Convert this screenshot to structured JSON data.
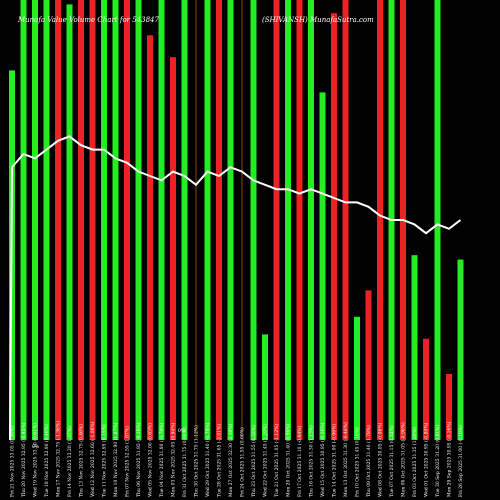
{
  "chart_data": {
    "type": "bar",
    "title_left": "Munafa Value Volume Chart for 543847",
    "title_right": "(SHIVANSH) MunafaSutra.com",
    "extra_labels": [
      "0%",
      "0%"
    ],
    "colors": {
      "up": "#22ee22",
      "down": "#ee2222",
      "line": "#ffffff",
      "neutral": "#8b4513",
      "background": "#000000"
    },
    "ylim": [
      0,
      100
    ],
    "categories": [
      "Fri 21 Nov 2025 33.05 (0.30%)",
      "Thu 20 Nov 2025 32.95 (-0.45%)",
      "Wed 19 Nov 2025 33.10 (0.61%)",
      "Tue 18 Nov 2025 32.90 (0.46%)",
      "Mon 17 Nov 2025 32.75 (-1.36%)",
      "Fri 14 Nov 2025 33.20 (1.37%)",
      "Thu 13 Nov 2025 32.75 (0.46%)",
      "Wed 12 Nov 2025 32.60 (-1.06%)",
      "Tue 11 Nov 2025 32.95 (0.15%)",
      "Mon 10 Nov 2025 32.90 (1.07%)",
      "Fri 07 Nov 2025 32.55 (1.87%)",
      "Thu 06 Nov 2025 31.95 (-0.16%)",
      "Wed 05 Nov 2025 32.00 (0.63%)",
      "Tue 04 Nov 2025 31.80 (-0.78%)",
      "Mon 03 Nov 2025 32.05 (0.94%)",
      "Fri 31 Oct 2025 31.75 (0.00%)",
      "Thu 30 Oct 2025 31.75 (1.12%)",
      "Wed 29 Oct 2025 31.40 (-0.79%)",
      "Tue 28 Oct 2025 31.65 (-2.01%)",
      "Mon 27 Oct 2025 32.30 (2.38%)",
      "Fri 24 Oct 2025 31.55 (0.00%)",
      "Thu 23 Oct 2025 31.55 (0.32%)",
      "Wed 22 Oct 2025 31.45 (1.29%)",
      "Tue 21 Oct 2025 31.05 (-1.12%)",
      "Mon 20 Oct 2025 31.40 (0.96%)",
      "Fri 17 Oct 2025 31.10 (-0.64%)",
      "Thu 16 Oct 2025 31.30 (1.13%)",
      "Wed 15 Oct 2025 30.95 (-0.16%)",
      "Tue 14 Oct 2025 31.00 (-0.96%)",
      "Mon 13 Oct 2025 31.30 (-0.48%)",
      "Fri 10 Oct 2025 31.45 (0.16%)",
      "Thu 09 Oct 2025 31.40 (1.78%)",
      "Wed 08 Oct 2025 30.85 (-0.96%)",
      "Tue 07 Oct 2025 31.15 (0.32%)",
      "Mon 06 Oct 2025 31.05 (-0.96%)",
      "Fri 03 Oct 2025 31.35 (1.29%)",
      "Wed 01 Oct 2025 30.95 (-0.80%)",
      "Tue 30 Sep 2025 31.20 (0.81%)",
      "Mon 29 Sep 2025 30.95 (-0.16%)",
      "Fri 26 Sep 2025 31.00 (-0.16%)"
    ],
    "values": [
      84,
      100,
      100,
      100,
      100,
      99,
      100,
      100,
      100,
      100,
      100,
      100,
      92,
      100,
      87,
      100,
      100,
      100,
      100,
      100,
      100,
      100,
      24,
      100,
      100,
      100,
      100,
      79,
      97,
      100,
      28,
      34,
      100,
      100,
      100,
      42,
      23,
      100,
      15,
      41
    ],
    "direction": [
      "up",
      "up",
      "up",
      "up",
      "down",
      "up",
      "down",
      "down",
      "up",
      "up",
      "down",
      "up",
      "down",
      "up",
      "down",
      "up",
      "neutral",
      "up",
      "down",
      "up",
      "neutral",
      "up",
      "up",
      "down",
      "up",
      "down",
      "up",
      "up",
      "down",
      "down",
      "up",
      "red_high",
      "down",
      "up",
      "down",
      "up",
      "down",
      "up",
      "down",
      "up"
    ],
    "line_values": [
      62,
      65,
      64,
      66,
      68,
      69,
      67,
      66,
      66,
      64,
      63,
      61,
      60,
      59,
      61,
      60,
      58,
      61,
      60,
      62,
      61,
      59,
      58,
      57,
      57,
      56,
      57,
      56,
      55,
      54,
      54,
      53,
      51,
      50,
      50,
      49,
      47,
      49,
      48,
      50
    ]
  }
}
